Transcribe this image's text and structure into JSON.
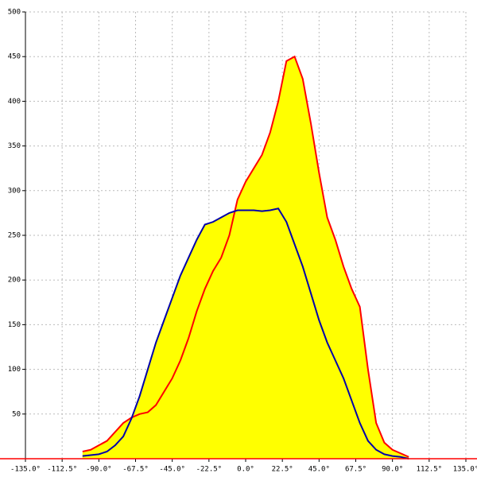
{
  "chart_data": {
    "type": "area",
    "x": [
      -100,
      -95,
      -90,
      -85,
      -80,
      -75,
      -70,
      -65,
      -60,
      -55,
      -50,
      -45,
      -40,
      -35,
      -30,
      -25,
      -20,
      -15,
      -10,
      -5,
      0,
      5,
      10,
      15,
      20,
      25,
      30,
      35,
      40,
      45,
      50,
      55,
      60,
      65,
      70,
      75,
      80,
      85,
      90,
      95,
      100
    ],
    "series": [
      {
        "color": "#ff0000",
        "fill": "#ffff00",
        "values": [
          8,
          10,
          15,
          20,
          30,
          40,
          46,
          50,
          52,
          60,
          75,
          90,
          110,
          135,
          165,
          190,
          210,
          225,
          250,
          290,
          310,
          325,
          340,
          365,
          400,
          445,
          450,
          425,
          375,
          320,
          270,
          245,
          215,
          190,
          170,
          100,
          40,
          18,
          10,
          6,
          2
        ]
      },
      {
        "color": "#0000aa",
        "fill": "#ffff00",
        "values": [
          3,
          4,
          5,
          8,
          15,
          25,
          45,
          70,
          100,
          130,
          155,
          180,
          205,
          225,
          245,
          262,
          265,
          270,
          275,
          278,
          278,
          278,
          277,
          278,
          280,
          265,
          240,
          215,
          185,
          155,
          130,
          110,
          90,
          65,
          40,
          20,
          10,
          5,
          3,
          2,
          0
        ]
      }
    ],
    "xlim": [
      -135,
      135
    ],
    "xticks": [
      {
        "value": -135,
        "label": "-135.0°"
      },
      {
        "value": -112.5,
        "label": "-112.5°"
      },
      {
        "value": -90,
        "label": "-90.0°"
      },
      {
        "value": -67.5,
        "label": "-67.5°"
      },
      {
        "value": -45,
        "label": "-45.0°"
      },
      {
        "value": -22.5,
        "label": "-22.5°"
      },
      {
        "value": 0,
        "label": "0.0°"
      },
      {
        "value": 22.5,
        "label": "22.5°"
      },
      {
        "value": 45,
        "label": "45.0°"
      },
      {
        "value": 67.5,
        "label": "67.5°"
      },
      {
        "value": 90,
        "label": "90.0°"
      },
      {
        "value": 112.5,
        "label": "112.5°"
      },
      {
        "value": 135,
        "label": "135.0°"
      }
    ],
    "ylim": [
      0,
      500
    ],
    "yticks": [
      50,
      100,
      150,
      200,
      250,
      300,
      350,
      400,
      450,
      500
    ],
    "grid": true
  }
}
